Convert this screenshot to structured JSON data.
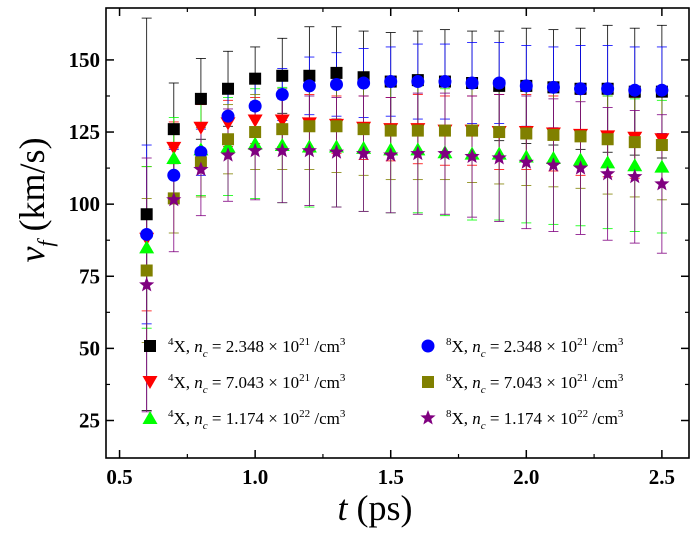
{
  "chart_data": {
    "type": "scatter",
    "xlabel": {
      "var": "t",
      "unit": "(ps)"
    },
    "ylabel": {
      "var": "v",
      "sub": "f",
      "unit": "(km/s)"
    },
    "xlim": [
      0.45,
      2.6
    ],
    "ylim": [
      12,
      168
    ],
    "xticks": [
      0.5,
      1.0,
      1.5,
      2.0,
      2.5
    ],
    "xtick_labels": [
      "0.5",
      "1.0",
      "1.5",
      "2.0",
      "2.5"
    ],
    "yticks": [
      25,
      50,
      75,
      100,
      125,
      150
    ],
    "ytick_labels": [
      "25",
      "50",
      "75",
      "100",
      "125",
      "150"
    ],
    "x": [
      0.6,
      0.7,
      0.8,
      0.9,
      1.0,
      1.1,
      1.2,
      1.3,
      1.4,
      1.5,
      1.6,
      1.7,
      1.8,
      1.9,
      2.0,
      2.1,
      2.2,
      2.3,
      2.4,
      2.5
    ],
    "series": [
      {
        "legend": {
          "sup": "4",
          "iso": "X",
          "nvar": "n",
          "nsub": "c",
          "coef": "= 2.348 × 10",
          "exp": "21",
          "unit": " /cm",
          "unit_exp": "3"
        },
        "marker": "square",
        "color": "#000000",
        "values": [
          96.5,
          126.0,
          136.5,
          140.0,
          143.5,
          144.5,
          144.5,
          145.5,
          144.0,
          142.5,
          143.0,
          142.5,
          142.0,
          141.0,
          141.0,
          140.5,
          140.0,
          140.0,
          139.0,
          139.0
        ],
        "errors": [
          68,
          16,
          14,
          13,
          11,
          13,
          17,
          16,
          16,
          17,
          17,
          18,
          18,
          19,
          20,
          20,
          21,
          22,
          22,
          23
        ]
      },
      {
        "legend": {
          "sup": "4",
          "iso": "X",
          "nvar": "n",
          "nsub": "c",
          "coef": "= 7.043 × 10",
          "exp": "21",
          "unit": " /cm",
          "unit_exp": "3"
        },
        "marker": "triangle-down",
        "color": "#ff0000",
        "values": [
          88.0,
          119.5,
          126.5,
          128.0,
          129.0,
          129.0,
          128.0,
          127.5,
          126.5,
          126.0,
          126.0,
          125.5,
          125.5,
          125.0,
          125.0,
          124.5,
          124.0,
          123.5,
          123.0,
          122.5
        ],
        "errors": [
          25,
          9,
          8,
          8,
          8,
          9,
          10,
          10,
          11,
          11,
          12,
          12,
          12,
          13,
          13,
          13,
          14,
          14,
          14,
          15
        ]
      },
      {
        "legend": {
          "sup": "4",
          "iso": "X",
          "nvar": "n",
          "nsub": "c",
          "coef": "= 1.174 × 10",
          "exp": "22",
          "unit": " /cm",
          "unit_exp": "3"
        },
        "marker": "triangle-up",
        "color": "#00ff00",
        "values": [
          85.0,
          116.0,
          119.0,
          120.0,
          121.0,
          120.5,
          120.0,
          120.0,
          119.5,
          119.0,
          119.0,
          118.0,
          117.5,
          117.5,
          116.5,
          116.0,
          115.5,
          114.5,
          113.5,
          113.0
        ],
        "errors": [
          28,
          14,
          16,
          17,
          19,
          20,
          21,
          21,
          22,
          22,
          22,
          22,
          23,
          23,
          23,
          23,
          23,
          23,
          23,
          23
        ]
      },
      {
        "legend": {
          "sup": "8",
          "iso": "X",
          "nvar": "n",
          "nsub": "c",
          "coef": "= 2.348 × 10",
          "exp": "21",
          "unit": " /cm",
          "unit_exp": "3"
        },
        "marker": "circle",
        "color": "#0000ff",
        "values": [
          89.5,
          110.0,
          118.0,
          130.5,
          134.0,
          138.0,
          141.0,
          141.5,
          142.0,
          142.5,
          142.5,
          142.5,
          142.0,
          142.0,
          141.0,
          140.5,
          140.0,
          140.0,
          139.5,
          139.5
        ],
        "errors": [
          31,
          9,
          8,
          8,
          8,
          9,
          10,
          11,
          12,
          12,
          13,
          13,
          14,
          14,
          14,
          14,
          15,
          15,
          15,
          15
        ]
      },
      {
        "legend": {
          "sup": "8",
          "iso": "X",
          "nvar": "n",
          "nsub": "c",
          "coef": "= 7.043 × 10",
          "exp": "21",
          "unit": " /cm",
          "unit_exp": "3"
        },
        "marker": "square",
        "color": "#808000",
        "values": [
          77.0,
          102.0,
          114.5,
          122.5,
          125.0,
          126.0,
          127.0,
          127.0,
          126.0,
          125.5,
          125.5,
          125.5,
          125.5,
          125.0,
          124.5,
          124.0,
          123.5,
          122.5,
          121.5,
          120.5
        ],
        "errors": [
          25,
          12,
          12,
          12,
          13,
          14,
          15,
          16,
          16,
          17,
          17,
          17,
          18,
          18,
          18,
          18,
          18,
          19,
          19,
          19
        ]
      },
      {
        "legend": {
          "sup": "8",
          "iso": "X",
          "nvar": "n",
          "nsub": "c",
          "coef": "= 1.174 × 10",
          "exp": "22",
          "unit": " /cm",
          "unit_exp": "3"
        },
        "marker": "star",
        "color": "#800080",
        "values": [
          72.0,
          101.5,
          112.0,
          117.0,
          118.5,
          118.5,
          118.5,
          118.0,
          117.5,
          117.0,
          117.5,
          117.5,
          116.5,
          116.0,
          114.5,
          113.5,
          112.5,
          110.5,
          109.5,
          107.0
        ],
        "errors": [
          44,
          18,
          16,
          16,
          17,
          18,
          19,
          19,
          20,
          20,
          21,
          21,
          21,
          22,
          23,
          23,
          23,
          23,
          23,
          24
        ]
      }
    ]
  }
}
